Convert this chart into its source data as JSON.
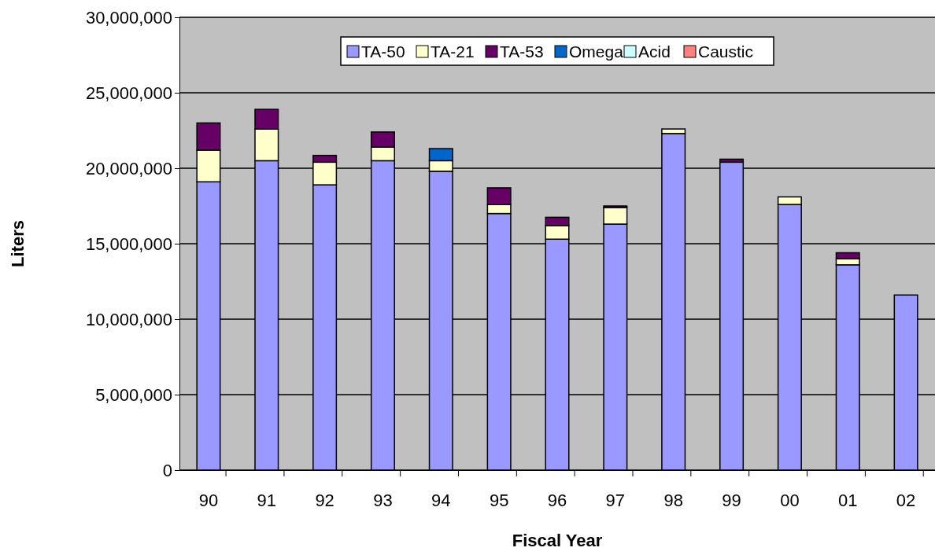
{
  "chart_data": {
    "type": "bar",
    "stacked": true,
    "xlabel": "Fiscal Year",
    "ylabel": "Liters",
    "categories": [
      "90",
      "91",
      "92",
      "93",
      "94",
      "95",
      "96",
      "97",
      "98",
      "99",
      "00",
      "01",
      "02"
    ],
    "series": [
      {
        "name": "TA-50",
        "color": "#9999ff",
        "values": [
          19100000,
          20500000,
          18900000,
          20500000,
          19800000,
          17000000,
          15300000,
          16300000,
          22300000,
          20400000,
          17600000,
          13600000,
          11600000
        ]
      },
      {
        "name": "TA-21",
        "color": "#ffffcc",
        "values": [
          2100000,
          2100000,
          1500000,
          900000,
          700000,
          600000,
          900000,
          1100000,
          300000,
          0,
          500000,
          400000,
          0
        ]
      },
      {
        "name": "TA-53",
        "color": "#660066",
        "values": [
          1800000,
          1300000,
          450000,
          1000000,
          0,
          1100000,
          550000,
          100000,
          0,
          200000,
          0,
          400000,
          0
        ]
      },
      {
        "name": "Omega",
        "color": "#0066cc",
        "values": [
          0,
          0,
          0,
          0,
          800000,
          0,
          0,
          0,
          0,
          0,
          0,
          0,
          0
        ]
      },
      {
        "name": "Acid",
        "color": "#ccffff",
        "values": [
          0,
          0,
          0,
          0,
          0,
          0,
          0,
          0,
          0,
          0,
          0,
          0,
          0
        ]
      },
      {
        "name": "Caustic",
        "color": "#ff8080",
        "values": [
          0,
          0,
          0,
          0,
          0,
          0,
          0,
          0,
          0,
          0,
          0,
          0,
          0
        ]
      }
    ],
    "ylim": [
      0,
      30000000
    ],
    "yticks": [
      {
        "value": 0,
        "label": "0"
      },
      {
        "value": 5000000,
        "label": "5,000,000"
      },
      {
        "value": 10000000,
        "label": "10,000,000"
      },
      {
        "value": 15000000,
        "label": "15,000,000"
      },
      {
        "value": 20000000,
        "label": "20,000,000"
      },
      {
        "value": 25000000,
        "label": "25,000,000"
      },
      {
        "value": 30000000,
        "label": "30,000,000"
      }
    ],
    "grid": "y",
    "legend": "top"
  }
}
